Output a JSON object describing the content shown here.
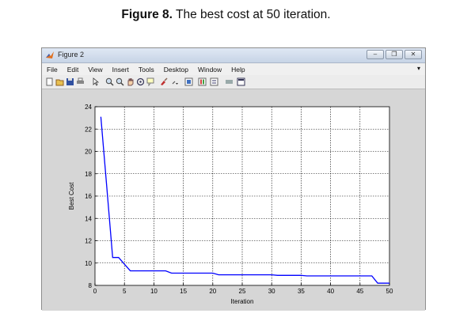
{
  "caption": {
    "label": "Figure 8.",
    "text": " The best cost at 50 iteration."
  },
  "window": {
    "title": "Figure 2",
    "menu": [
      "File",
      "Edit",
      "View",
      "Insert",
      "Tools",
      "Desktop",
      "Window",
      "Help"
    ],
    "controls": [
      "minimize-icon",
      "restore-icon",
      "close-icon"
    ],
    "toolbar_icons": [
      "new-figure-icon",
      "open-icon",
      "save-icon",
      "print-icon",
      "pointer-icon",
      "zoom-in-icon",
      "zoom-out-icon",
      "pan-icon",
      "rotate-icon",
      "datacursor-icon",
      "brush-icon",
      "link-icon",
      "colorbar-icon",
      "legend-icon",
      "hide-tools-icon",
      "show-tools-icon"
    ]
  },
  "chart_data": {
    "type": "line",
    "xlabel": "Iteration",
    "ylabel": "Best Cost",
    "xlim": [
      0,
      50
    ],
    "ylim": [
      8,
      24
    ],
    "xticks": [
      0,
      5,
      10,
      15,
      20,
      25,
      30,
      35,
      40,
      45,
      50
    ],
    "yticks": [
      8,
      10,
      12,
      14,
      16,
      18,
      20,
      22,
      24
    ],
    "grid": true,
    "series": [
      {
        "color": "#0000ff",
        "x": [
          1,
          2,
          3,
          4,
          5,
          6,
          7,
          8,
          9,
          10,
          11,
          12,
          13,
          14,
          15,
          16,
          17,
          18,
          19,
          20,
          21,
          22,
          23,
          24,
          25,
          26,
          27,
          28,
          29,
          30,
          31,
          32,
          33,
          34,
          35,
          36,
          37,
          38,
          39,
          40,
          41,
          42,
          43,
          44,
          45,
          46,
          47,
          48,
          49,
          50
        ],
        "y": [
          23.1,
          16.8,
          10.5,
          10.5,
          9.9,
          9.3,
          9.3,
          9.3,
          9.3,
          9.3,
          9.3,
          9.3,
          9.1,
          9.1,
          9.1,
          9.1,
          9.1,
          9.1,
          9.1,
          9.1,
          8.95,
          8.95,
          8.95,
          8.95,
          8.95,
          8.95,
          8.95,
          8.95,
          8.95,
          8.95,
          8.9,
          8.9,
          8.9,
          8.9,
          8.9,
          8.85,
          8.85,
          8.85,
          8.85,
          8.85,
          8.85,
          8.85,
          8.85,
          8.85,
          8.85,
          8.85,
          8.85,
          8.2,
          8.2,
          8.2
        ]
      }
    ]
  }
}
